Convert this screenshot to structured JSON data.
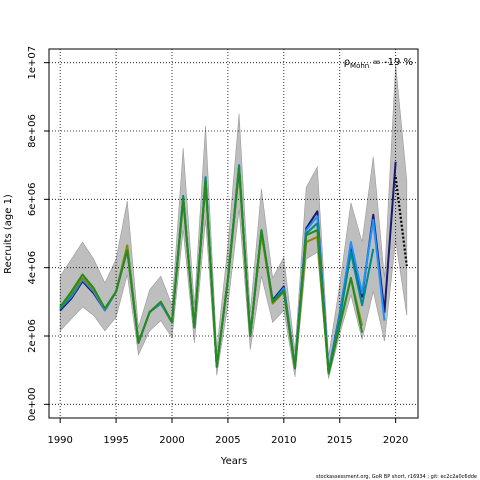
{
  "chart_data": {
    "type": "line",
    "title": "",
    "xlabel": "Years",
    "ylabel": "Recruits (age 1)",
    "xlim": [
      1989,
      2022
    ],
    "ylim": [
      -400000,
      10400000
    ],
    "x_ticks": [
      1990,
      1995,
      2000,
      2005,
      2010,
      2015,
      2020
    ],
    "x_tick_labels": [
      "1990",
      "1995",
      "2000",
      "2005",
      "2010",
      "2015",
      "2020"
    ],
    "y_ticks": [
      0,
      2000000,
      4000000,
      6000000,
      8000000,
      10000000
    ],
    "y_tick_labels": [
      "0e+00",
      "2e+06",
      "4e+06",
      "6e+06",
      "8e+06",
      "1e+07"
    ],
    "grid": true,
    "annotation": {
      "text": "ρ",
      "subscript": "Mohn",
      "suffix": " = -19 %"
    },
    "footer": "stockassessment.org, GoR BP short, r16934 ; git: ec2c2a0c6dde",
    "x": [
      1990,
      1991,
      1992,
      1993,
      1994,
      1995,
      1996,
      1997,
      1998,
      1999,
      2000,
      2001,
      2002,
      2003,
      2004,
      2005,
      2006,
      2007,
      2008,
      2009,
      2010,
      2011,
      2012,
      2013,
      2014,
      2015,
      2016,
      2017,
      2018,
      2019,
      2020,
      2021
    ],
    "band": {
      "color": "#bebebe",
      "lower": [
        2150000,
        2500000,
        2850000,
        2600000,
        2150000,
        2550000,
        3800000,
        1450000,
        2150000,
        2450000,
        1950000,
        5100000,
        1800000,
        5400000,
        850000,
        2900000,
        5700000,
        1600000,
        3750000,
        2400000,
        2750000,
        800000,
        4250000,
        4450000,
        750000,
        2050000,
        3200000,
        1900000,
        3300000,
        1850000,
        4800000,
        2600000
      ],
      "upper": [
        3750000,
        4250000,
        4750000,
        4250000,
        3550000,
        4250000,
        5950000,
        2250000,
        3350000,
        3750000,
        2900000,
        7500000,
        2900000,
        8150000,
        1600000,
        4650000,
        8500000,
        2700000,
        6300000,
        3700000,
        4300000,
        1550000,
        6350000,
        6950000,
        1400000,
        3500000,
        5900000,
        4750000,
        7250000,
        3700000,
        9950000,
        6550000
      ]
    },
    "series": [
      {
        "color": "#191970",
        "values": [
          2750000,
          3100000,
          3600000,
          3250000,
          2750000,
          3300000,
          4550000,
          1800000,
          2700000,
          2950000,
          2400000,
          6050000,
          2250000,
          6550000,
          1100000,
          3650000,
          6950000,
          2000000,
          5050000,
          3050000,
          3450000,
          1100000,
          5150000,
          5650000,
          950000,
          2650000,
          4650000,
          3150000,
          5550000,
          2700000,
          7100000,
          null
        ]
      },
      {
        "color": "#1e90ff",
        "values": [
          2800000,
          3150000,
          3650000,
          3300000,
          2750000,
          3300000,
          4600000,
          1800000,
          2700000,
          2950000,
          2400000,
          6050000,
          2250000,
          6600000,
          1100000,
          3650000,
          6950000,
          2000000,
          5100000,
          3000000,
          3400000,
          1100000,
          5100000,
          5500000,
          950000,
          2600000,
          4750000,
          3250000,
          5400000,
          2450000,
          null,
          null
        ]
      },
      {
        "color": "#008b8b",
        "values": [
          2800000,
          3200000,
          3700000,
          3350000,
          2800000,
          3300000,
          4650000,
          1800000,
          2700000,
          3000000,
          2400000,
          6100000,
          2250000,
          6650000,
          1100000,
          3650000,
          7000000,
          2000000,
          5100000,
          3000000,
          3350000,
          1100000,
          5000000,
          5300000,
          950000,
          2500000,
          4450000,
          2900000,
          4550000,
          null,
          null,
          null
        ]
      },
      {
        "color": "#8b8b00",
        "values": [
          2850000,
          3250000,
          3700000,
          3350000,
          2800000,
          3300000,
          4650000,
          1800000,
          2700000,
          3000000,
          2400000,
          6000000,
          2250000,
          6500000,
          1100000,
          3650000,
          6850000,
          2000000,
          5000000,
          2950000,
          3300000,
          1050000,
          4750000,
          4900000,
          900000,
          2300000,
          3700000,
          2300000,
          null,
          null,
          null,
          null
        ]
      },
      {
        "color": "#228b22",
        "values": [
          2850000,
          3300000,
          3800000,
          3400000,
          2800000,
          3300000,
          4500000,
          1800000,
          2700000,
          3000000,
          2400000,
          6000000,
          2250000,
          6550000,
          1100000,
          3650000,
          6900000,
          2000000,
          5100000,
          3000000,
          3300000,
          1050000,
          4950000,
          5100000,
          900000,
          2300000,
          3700000,
          2100000,
          null,
          null,
          null,
          null
        ]
      }
    ],
    "projection": {
      "color": "#000000",
      "x": [
        2020,
        2021
      ],
      "values": [
        6650000,
        4050000
      ]
    }
  }
}
